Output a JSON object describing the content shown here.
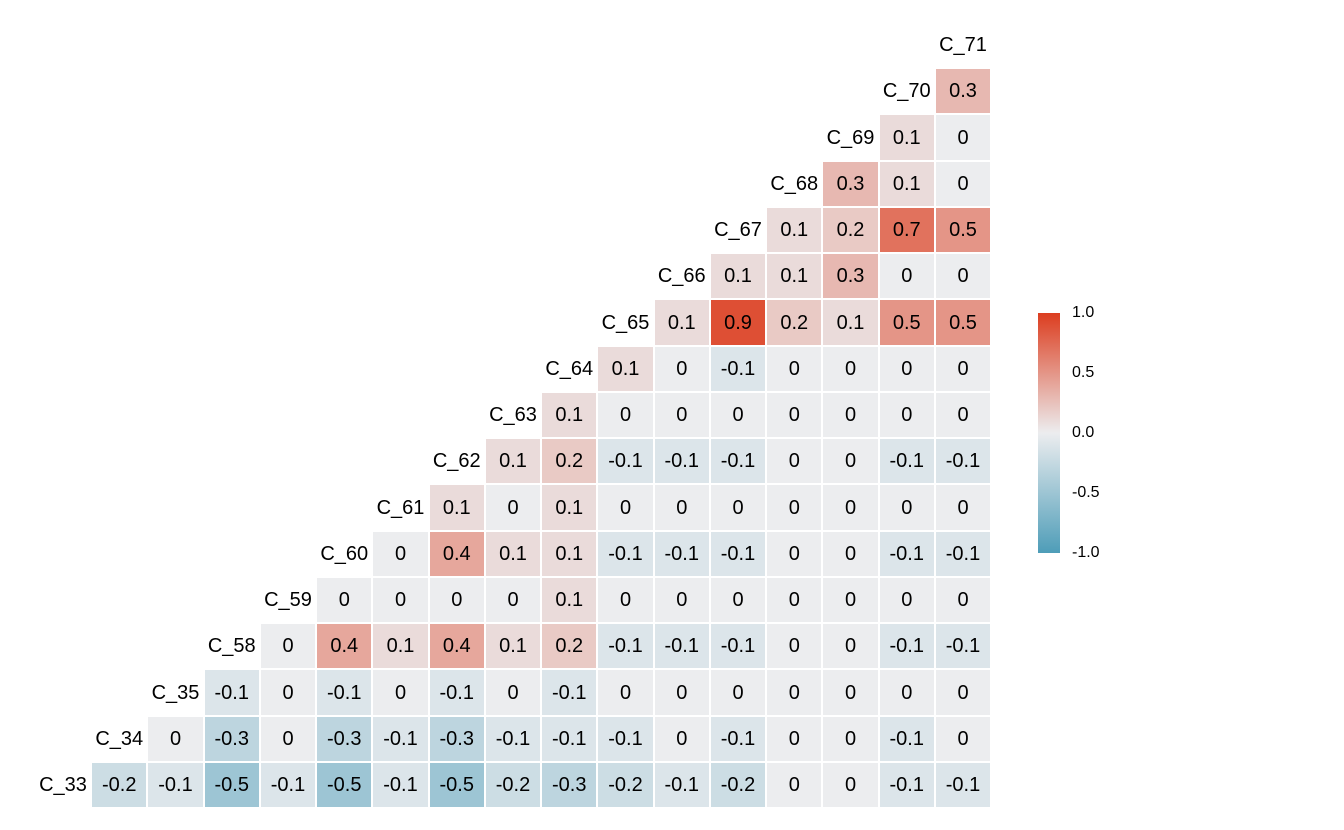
{
  "chart_data": {
    "type": "heatmap",
    "subtype": "correlation-triangle",
    "title": "",
    "variables_order_bottom_to_top": [
      "C_33",
      "C_34",
      "C_35",
      "C_58",
      "C_59",
      "C_60",
      "C_61",
      "C_62",
      "C_63",
      "C_64",
      "C_65",
      "C_66",
      "C_67",
      "C_68",
      "C_69",
      "C_70",
      "C_71"
    ],
    "rows": [
      {
        "label": "C_71",
        "values": []
      },
      {
        "label": "C_70",
        "values": [
          0.3
        ]
      },
      {
        "label": "C_69",
        "values": [
          0.1,
          0
        ]
      },
      {
        "label": "C_68",
        "values": [
          0.3,
          0.1,
          0
        ]
      },
      {
        "label": "C_67",
        "values": [
          0.1,
          0.2,
          0.7,
          0.5
        ]
      },
      {
        "label": "C_66",
        "values": [
          0.1,
          0.1,
          0.3,
          0,
          0
        ]
      },
      {
        "label": "C_65",
        "values": [
          0.1,
          0.9,
          0.2,
          0.1,
          0.5,
          0.5
        ]
      },
      {
        "label": "C_64",
        "values": [
          0.1,
          0,
          -0.1,
          0,
          0,
          0,
          0
        ]
      },
      {
        "label": "C_63",
        "values": [
          0.1,
          0,
          0,
          0,
          0,
          0,
          0,
          0
        ]
      },
      {
        "label": "C_62",
        "values": [
          0.1,
          0.2,
          -0.1,
          -0.1,
          -0.1,
          0,
          0,
          -0.1,
          -0.1
        ]
      },
      {
        "label": "C_61",
        "values": [
          0.1,
          0,
          0.1,
          0,
          0,
          0,
          0,
          0,
          0,
          0
        ]
      },
      {
        "label": "C_60",
        "values": [
          0,
          0.4,
          0.1,
          0.1,
          -0.1,
          -0.1,
          -0.1,
          0,
          0,
          -0.1,
          -0.1
        ]
      },
      {
        "label": "C_59",
        "values": [
          0,
          0,
          0,
          0,
          0.1,
          0,
          0,
          0,
          0,
          0,
          0,
          0
        ]
      },
      {
        "label": "C_58",
        "values": [
          0,
          0.4,
          0.1,
          0.4,
          0.1,
          0.2,
          -0.1,
          -0.1,
          -0.1,
          0,
          0,
          -0.1,
          -0.1
        ]
      },
      {
        "label": "C_35",
        "values": [
          -0.1,
          0,
          -0.1,
          0,
          -0.1,
          0,
          -0.1,
          0,
          0,
          0,
          0,
          0,
          0,
          0
        ]
      },
      {
        "label": "C_34",
        "values": [
          0,
          -0.3,
          0,
          -0.3,
          -0.1,
          -0.3,
          -0.1,
          -0.1,
          -0.1,
          0,
          -0.1,
          0,
          0,
          -0.1,
          0
        ]
      },
      {
        "label": "C_33",
        "values": [
          -0.2,
          -0.1,
          -0.5,
          -0.1,
          -0.5,
          -0.1,
          -0.5,
          -0.2,
          -0.3,
          -0.2,
          -0.1,
          -0.2,
          0,
          0,
          -0.1,
          -0.1
        ]
      }
    ],
    "value_range": [
      -1,
      1
    ],
    "legend": {
      "ticks": [
        "1.0",
        "0.5",
        "0.0",
        "-0.5",
        "-1.0"
      ],
      "position": "right"
    },
    "colors": {
      "high": "#DC3D1F",
      "mid": "#ECEDEF",
      "low": "#4E9DB8",
      "background": "#FFFFFF",
      "cell_border": "#FFFFFF",
      "text": "#000000"
    }
  }
}
